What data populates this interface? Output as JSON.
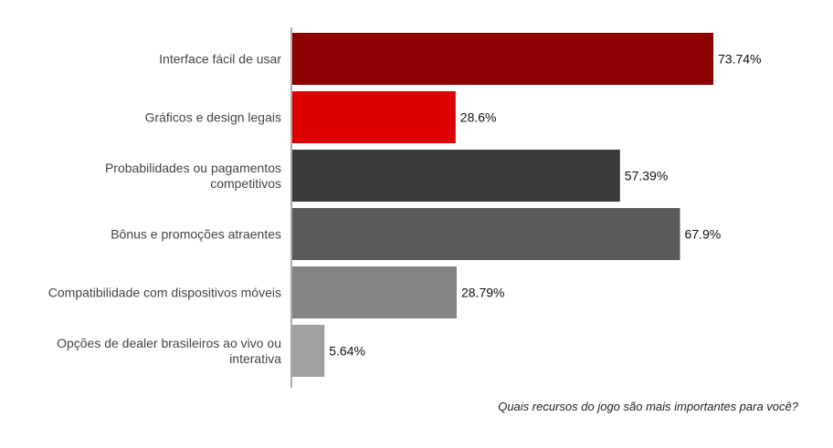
{
  "chart_data": {
    "type": "bar",
    "orientation": "horizontal",
    "categories": [
      [
        "Interface fácil de usar"
      ],
      [
        "Gráficos e design legais"
      ],
      [
        "Probabilidades ou pagamentos",
        "competitivos"
      ],
      [
        "Bônus e promoções atraentes"
      ],
      [
        "Compatibilidade com dispositivos móveis"
      ],
      [
        "Opções de dealer brasileiros ao vivo ou",
        "interativa"
      ]
    ],
    "values": [
      73.74,
      28.6,
      57.39,
      67.9,
      28.79,
      5.64
    ],
    "value_labels": [
      "73.74%",
      "28.6%",
      "57.39%",
      "67.9%",
      "28.79%",
      "5.64%"
    ],
    "colors": [
      "#8b0000",
      "#dd0000",
      "#3b3b3b",
      "#5a5a5a",
      "#848484",
      "#a0a0a0"
    ],
    "xlim": [
      0,
      100
    ],
    "grid": false,
    "legend": "none",
    "caption": "Quais recursos do jogo são mais importantes para você?"
  }
}
